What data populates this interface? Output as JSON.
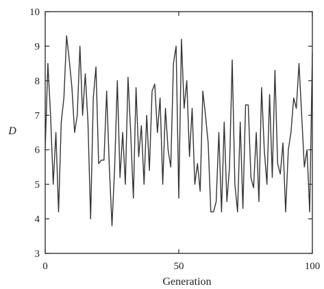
{
  "chart_data": {
    "type": "line",
    "title": "",
    "xlabel": "Generation",
    "ylabel": "D",
    "xlim": [
      0,
      100
    ],
    "ylim": [
      3,
      10
    ],
    "x_ticks": [
      0,
      50,
      100
    ],
    "y_ticks": [
      3,
      4,
      5,
      6,
      7,
      8,
      9,
      10
    ],
    "grid": false,
    "legend": "none",
    "series": [
      {
        "values": [
          6.0,
          8.5,
          7.0,
          5.0,
          6.5,
          4.2,
          6.8,
          7.5,
          9.3,
          8.6,
          7.8,
          6.5,
          7.0,
          9.0,
          7.0,
          8.2,
          6.8,
          4.0,
          7.5,
          8.4,
          5.6,
          5.7,
          5.7,
          7.7,
          5.5,
          3.8,
          5.5,
          8.0,
          5.2,
          6.5,
          5.0,
          8.1,
          6.5,
          4.6,
          7.8,
          5.8,
          6.7,
          5.0,
          7.0,
          5.4,
          7.7,
          7.9,
          6.5,
          7.5,
          5.0,
          7.2,
          6.0,
          5.5,
          8.5,
          9.0,
          4.6,
          9.2,
          7.2,
          8.0,
          5.8,
          7.2,
          5.0,
          5.6,
          4.8,
          7.7,
          7.0,
          6.2,
          4.2,
          4.2,
          4.5,
          6.5,
          4.2,
          6.8,
          4.5,
          5.5,
          8.6,
          5.0,
          4.2,
          6.8,
          4.3,
          7.3,
          7.3,
          5.2,
          4.9,
          6.5,
          4.5,
          7.8,
          6.0,
          5.0,
          7.6,
          5.2,
          8.3,
          5.6,
          5.3,
          6.2,
          4.2,
          6.0,
          6.5,
          7.5,
          7.2,
          8.5,
          7.0,
          5.5,
          6.0,
          4.2,
          8.8
        ]
      }
    ]
  }
}
